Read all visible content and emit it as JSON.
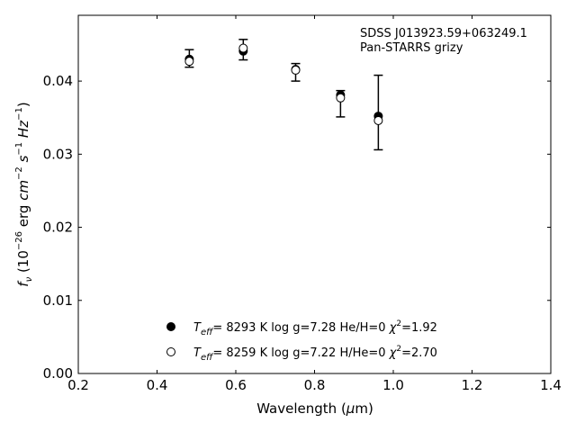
{
  "chart_data": {
    "type": "scatter",
    "annotation": [
      "SDSS J013923.59+063249.1",
      "Pan-STARRS grizy"
    ],
    "xlabel": "Wavelength (μm)",
    "ylabel": "fν (10⁻²⁶ erg cm⁻² s⁻¹ Hz⁻¹)",
    "xlim": [
      0.2,
      1.4
    ],
    "ylim": [
      0.0,
      0.049
    ],
    "xticks": [
      "0.2",
      "0.4",
      "0.6",
      "0.8",
      "1.0",
      "1.2",
      "1.4"
    ],
    "yticks": [
      "0.00",
      "0.01",
      "0.02",
      "0.03",
      "0.04"
    ],
    "grid": false,
    "legend_position": "bottom-center",
    "observed": {
      "x": [
        0.482,
        0.619,
        0.752,
        0.866,
        0.962
      ],
      "y": [
        0.0431,
        0.0443,
        0.0412,
        0.0369,
        0.0357
      ],
      "err": [
        0.0012,
        0.0014,
        0.0012,
        0.0018,
        0.0051
      ]
    },
    "series": [
      {
        "marker": "filled",
        "label": {
          "teff": "8293 K",
          "logg": "log g=7.28",
          "comp": "He/H=0",
          "chi": "=1.92"
        },
        "x": [
          0.482,
          0.619,
          0.752,
          0.866,
          0.962
        ],
        "y": [
          0.043,
          0.0441,
          0.0416,
          0.0381,
          0.0352
        ]
      },
      {
        "marker": "open",
        "label": {
          "teff": "8259 K",
          "logg": "log g=7.22",
          "comp": "H/He=0",
          "chi": "=2.70"
        },
        "x": [
          0.482,
          0.619,
          0.752,
          0.866,
          0.962
        ],
        "y": [
          0.0427,
          0.0445,
          0.0415,
          0.0377,
          0.0346
        ]
      }
    ]
  }
}
